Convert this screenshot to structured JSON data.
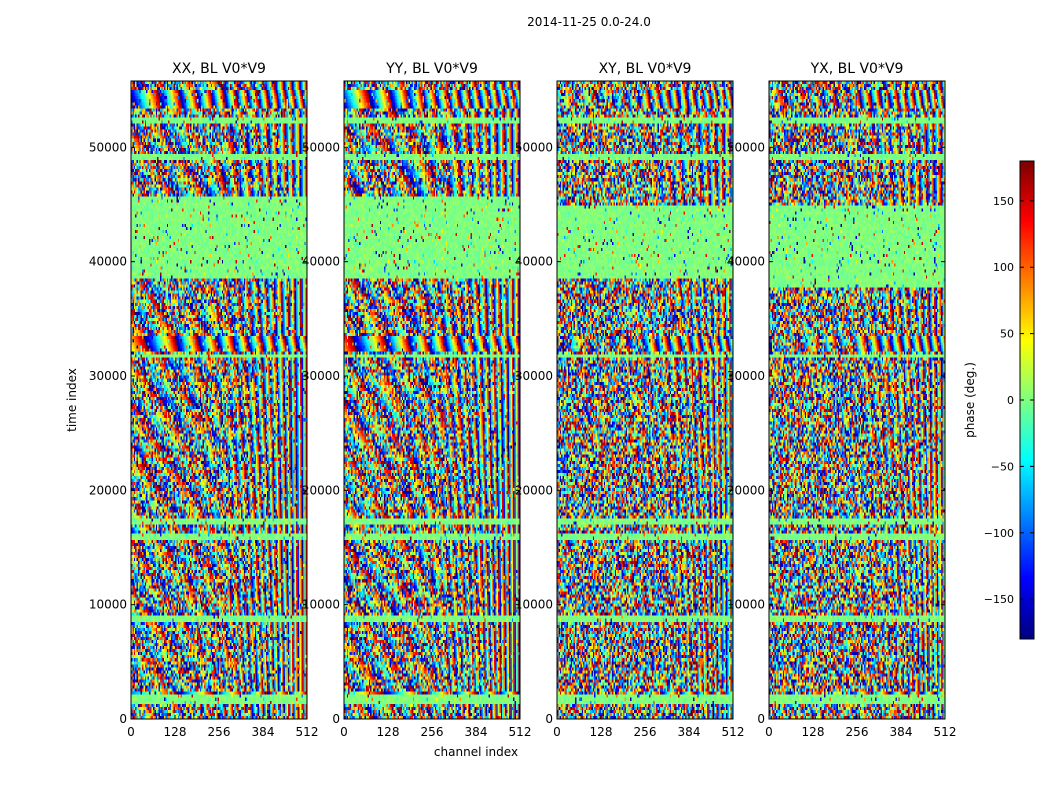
{
  "chart_data": {
    "type": "heatmap",
    "suptitle": "2014-11-25 0.0-24.0",
    "xlabel": "channel index",
    "ylabel": "time index",
    "xlim": [
      0,
      512
    ],
    "ylim": [
      0,
      55800
    ],
    "xticks": [
      0,
      128,
      256,
      384,
      512
    ],
    "yticks": [
      0,
      10000,
      20000,
      30000,
      40000,
      50000
    ],
    "panels": [
      {
        "title": "XX, BL V0*V9",
        "polarization": "XX"
      },
      {
        "title": "YY, BL V0*V9",
        "polarization": "YY"
      },
      {
        "title": "XY, BL V0*V9",
        "polarization": "XY"
      },
      {
        "title": "YX, BL V0*V9",
        "polarization": "YX"
      }
    ],
    "colorbar": {
      "label": "phase (deg.)",
      "range": [
        -180,
        180
      ],
      "ticks": [
        -150,
        -100,
        -50,
        0,
        50,
        100,
        150
      ],
      "colormap": "jet"
    },
    "flagged_time_bands": [
      [
        1400,
        2000
      ],
      [
        8400,
        9000
      ],
      [
        15600,
        16300
      ],
      [
        17000,
        17600
      ],
      [
        31700,
        32000
      ],
      [
        38800,
        39500
      ],
      [
        42600,
        43200
      ],
      [
        48800,
        49400
      ],
      [
        52000,
        52500
      ]
    ],
    "strong_fringe_bands": [
      [
        1600,
        2400
      ],
      [
        8600,
        9000
      ],
      [
        15600,
        16000
      ],
      [
        32200,
        33500
      ],
      [
        39200,
        42500
      ],
      [
        53500,
        55000
      ]
    ]
  }
}
